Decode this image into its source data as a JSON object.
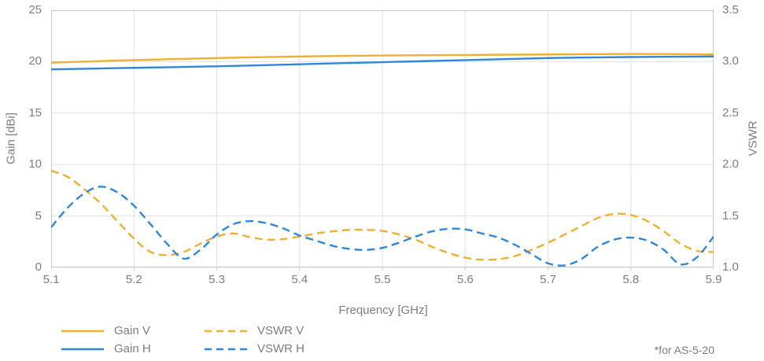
{
  "note": "*for AS-5-20",
  "colors": {
    "accent_yellow": "#EFAF34",
    "accent_blue": "#2F87DB",
    "grid": "#E0E0E0",
    "axis_border": "#C8C8C8",
    "text": "#7D7D7D"
  },
  "chart_data": {
    "type": "line",
    "title": "",
    "xlabel": "Frequency [GHz]",
    "grid": true,
    "legend_position": "bottom-left",
    "x_range": [
      5.1,
      5.9
    ],
    "x_tick_labels": [
      "5.1",
      "5.2",
      "5.3",
      "5.4",
      "5.5",
      "5.6",
      "5.7",
      "5.8",
      "5.9"
    ],
    "y_left": {
      "label": "Gain [dBi]",
      "range": [
        0,
        25
      ],
      "tick_labels": [
        "25",
        "20",
        "15",
        "10",
        "5",
        "0"
      ]
    },
    "y_right": {
      "label": "VSWR",
      "range": [
        1.0,
        3.5
      ],
      "tick_labels": [
        "3.5",
        "3.0",
        "2.5",
        "2.0",
        "1.5",
        "1.0"
      ]
    },
    "series": [
      {
        "name": "Gain V",
        "axis": "left",
        "style": "solid",
        "color": "#EFAF34",
        "x": [
          5.1,
          5.2,
          5.3,
          5.4,
          5.5,
          5.6,
          5.7,
          5.8,
          5.9
        ],
        "y": [
          19.9,
          20.15,
          20.35,
          20.5,
          20.6,
          20.65,
          20.7,
          20.75,
          20.7
        ]
      },
      {
        "name": "Gain H",
        "axis": "left",
        "style": "solid",
        "color": "#2F87DB",
        "x": [
          5.1,
          5.2,
          5.3,
          5.4,
          5.5,
          5.6,
          5.7,
          5.8,
          5.9
        ],
        "y": [
          19.25,
          19.4,
          19.55,
          19.75,
          19.95,
          20.15,
          20.35,
          20.45,
          20.5
        ]
      },
      {
        "name": "VSWR V",
        "axis": "right",
        "style": "dashed",
        "color": "#EFAF34",
        "x": [
          5.1,
          5.12,
          5.14,
          5.16,
          5.18,
          5.2,
          5.22,
          5.24,
          5.26,
          5.28,
          5.3,
          5.32,
          5.34,
          5.36,
          5.38,
          5.4,
          5.42,
          5.44,
          5.46,
          5.48,
          5.5,
          5.52,
          5.54,
          5.56,
          5.58,
          5.6,
          5.62,
          5.64,
          5.66,
          5.68,
          5.7,
          5.72,
          5.74,
          5.76,
          5.78,
          5.8,
          5.82,
          5.84,
          5.86,
          5.88,
          5.9
        ],
        "y": [
          1.94,
          1.88,
          1.76,
          1.62,
          1.45,
          1.28,
          1.15,
          1.12,
          1.15,
          1.23,
          1.3,
          1.33,
          1.295,
          1.27,
          1.275,
          1.3,
          1.33,
          1.35,
          1.365,
          1.365,
          1.355,
          1.32,
          1.27,
          1.2,
          1.14,
          1.095,
          1.075,
          1.08,
          1.11,
          1.17,
          1.24,
          1.32,
          1.4,
          1.48,
          1.52,
          1.51,
          1.45,
          1.35,
          1.23,
          1.16,
          1.15
        ]
      },
      {
        "name": "VSWR H",
        "axis": "right",
        "style": "dashed",
        "color": "#2F87DB",
        "x": [
          5.1,
          5.12,
          5.14,
          5.16,
          5.18,
          5.2,
          5.22,
          5.24,
          5.26,
          5.28,
          5.3,
          5.32,
          5.34,
          5.36,
          5.38,
          5.4,
          5.42,
          5.44,
          5.46,
          5.48,
          5.5,
          5.52,
          5.54,
          5.56,
          5.58,
          5.6,
          5.62,
          5.64,
          5.66,
          5.68,
          5.7,
          5.72,
          5.74,
          5.76,
          5.78,
          5.8,
          5.82,
          5.84,
          5.86,
          5.88,
          5.9
        ],
        "y": [
          1.39,
          1.58,
          1.72,
          1.785,
          1.73,
          1.6,
          1.42,
          1.23,
          1.085,
          1.17,
          1.32,
          1.42,
          1.45,
          1.43,
          1.38,
          1.31,
          1.26,
          1.21,
          1.18,
          1.17,
          1.19,
          1.24,
          1.3,
          1.35,
          1.375,
          1.37,
          1.33,
          1.29,
          1.22,
          1.13,
          1.04,
          1.02,
          1.08,
          1.2,
          1.27,
          1.29,
          1.26,
          1.17,
          1.03,
          1.1,
          1.3
        ]
      }
    ],
    "legend_order": [
      0,
      2,
      1,
      3
    ]
  }
}
